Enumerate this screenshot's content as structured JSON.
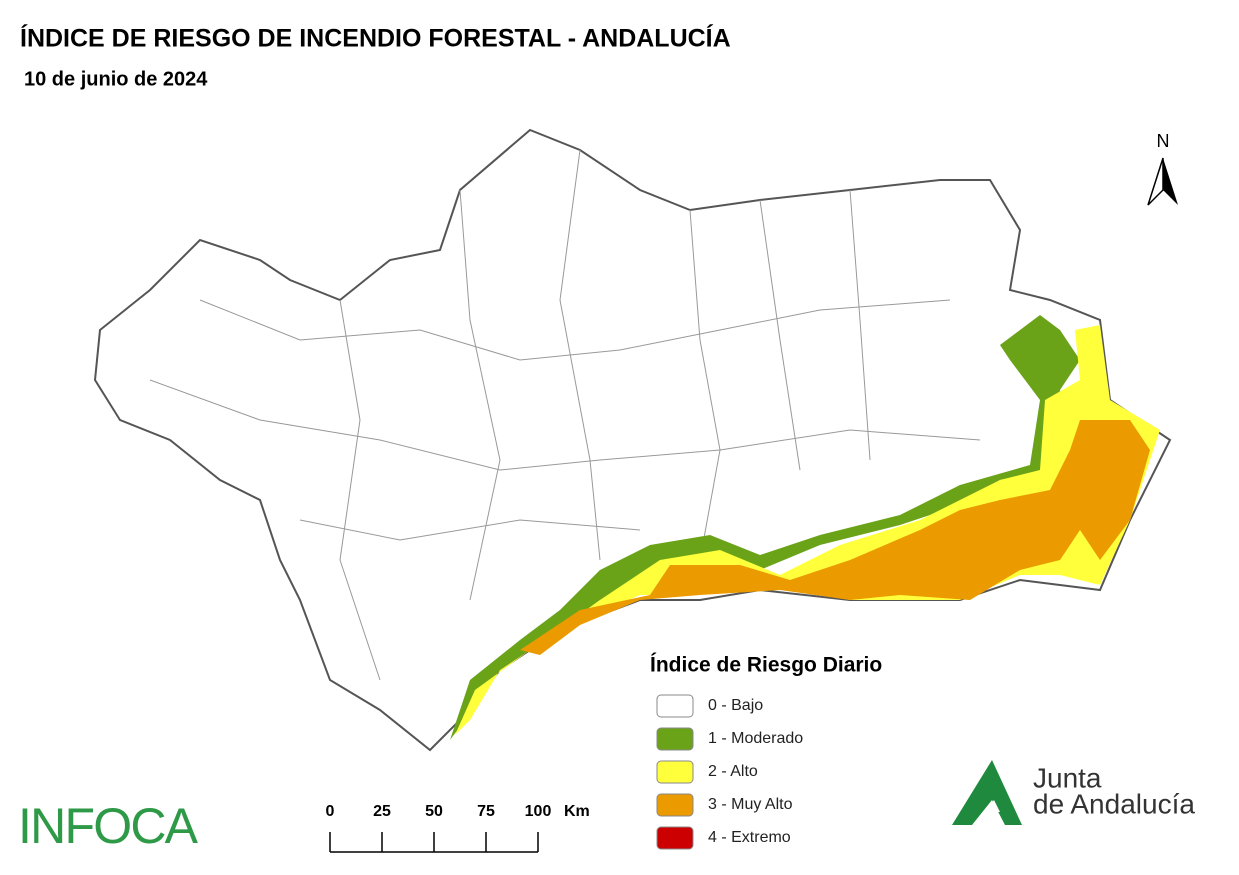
{
  "header": {
    "title": "ÍNDICE DE RIESGO DE INCENDIO FORESTAL - ANDALUCÍA",
    "date": "10 de junio de 2024"
  },
  "north": "N",
  "legend": {
    "title": "Índice de Riesgo Diario",
    "entries": [
      {
        "label": "0 - Bajo",
        "color": "#ffffff"
      },
      {
        "label": "1 - Moderado",
        "color": "#6aa318"
      },
      {
        "label": "2 - Alto",
        "color": "#ffff3c"
      },
      {
        "label": "3 - Muy Alto",
        "color": "#eb9a00"
      },
      {
        "label": "4 - Extremo",
        "color": "#cc0000"
      }
    ]
  },
  "scale": {
    "ticks": [
      0,
      25,
      50,
      75,
      100
    ],
    "unit": "Km"
  },
  "logos": {
    "infoca": "INFOCA",
    "junta_line1": "Junta",
    "junta_line2": "de Andalucía"
  }
}
